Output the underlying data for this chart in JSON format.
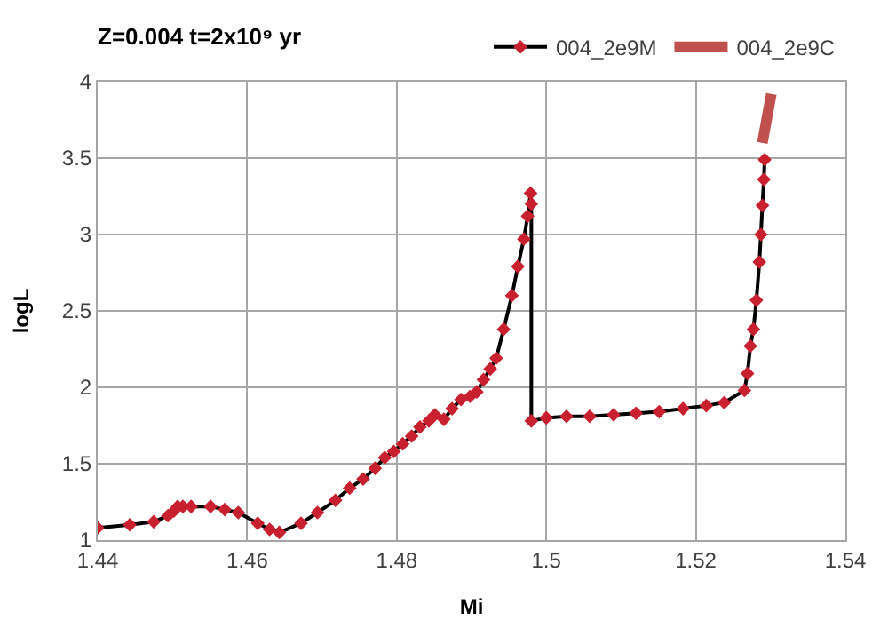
{
  "chart_data": {
    "type": "line",
    "title": "Z=0.004 t=2x10⁹ yr",
    "xlabel": "Mi",
    "ylabel": "logL",
    "xlim": [
      1.44,
      1.54
    ],
    "xticks": [
      1.44,
      1.46,
      1.48,
      1.5,
      1.52,
      1.54
    ],
    "ylim": [
      1,
      4
    ],
    "yticks": [
      1,
      1.5,
      2,
      2.5,
      3,
      3.5,
      4
    ],
    "grid": true,
    "legend": "top right",
    "series": [
      {
        "name": "004_2e9M",
        "color": "#000000",
        "colors": [
          "#c8202e",
          "#c8202e",
          "#c8202e",
          "#c8202e",
          "#c8202e",
          "#c8202e",
          "#c8202e",
          "#c8202e",
          "#c8202e",
          "#c8202e",
          "#c8202e",
          "#c8202e",
          "#c8202e",
          "#c8202e",
          "#c8202e",
          "#c8202e",
          "#c8202e",
          "#c8202e",
          "#c8202e",
          "#c8202e",
          "#c8202e",
          "#c8202e",
          "#c8202e",
          "#c8202e",
          "#c8202e",
          "#c8202e",
          "#c8202e",
          "#c8202e",
          "#c8202e",
          "#c8202e",
          "#c8202e",
          "#c8202e",
          "#c8202e",
          "#c8202e",
          "#c8202e",
          "#c8202e",
          "#c8202e",
          "#c8202e",
          "#c8202e",
          "#c8202e",
          "#c8202e",
          "#c8202e",
          "#c8202e",
          "#c8202e",
          "#c8202e",
          "#c8202e",
          "#c8202e",
          "#c8202e",
          "#c8202e",
          "#c8202e",
          "#c8202e",
          "#c8202e",
          "#c8202e",
          "#c8202e",
          "#c8202e",
          "#c8202e",
          "#c8202e",
          "#c8202e",
          "#c8202e",
          "#c8202e",
          "#c8202e",
          "#c8202e"
        ],
        "marker": "diamond",
        "x": [
          1.44,
          1.4443,
          1.4475,
          1.4494,
          1.4502,
          1.4507,
          1.4514,
          1.4525,
          1.4551,
          1.457,
          1.4588,
          1.4614,
          1.463,
          1.4643,
          1.4672,
          1.4694,
          1.4718,
          1.4737,
          1.4755,
          1.4771,
          1.4784,
          1.4796,
          1.4808,
          1.482,
          1.4831,
          1.4843,
          1.4851,
          1.4863,
          1.4874,
          1.4886,
          1.4898,
          1.4907,
          1.4916,
          1.4925,
          1.4933,
          1.4943,
          1.4954,
          1.4962,
          1.497,
          1.4975,
          1.4979,
          1.498,
          1.498,
          1.5,
          1.5027,
          1.5058,
          1.509,
          1.512,
          1.5151,
          1.5183,
          1.5214,
          1.5238,
          1.5265,
          1.5269,
          1.5273,
          1.5277,
          1.5281,
          1.5285,
          1.5287,
          1.5289,
          1.5291,
          1.5292
        ],
        "values": [
          1.08,
          1.1,
          1.12,
          1.16,
          1.19,
          1.22,
          1.22,
          1.22,
          1.22,
          1.2,
          1.18,
          1.11,
          1.07,
          1.05,
          1.11,
          1.18,
          1.26,
          1.34,
          1.4,
          1.47,
          1.54,
          1.58,
          1.63,
          1.68,
          1.74,
          1.78,
          1.82,
          1.79,
          1.86,
          1.92,
          1.94,
          1.97,
          2.05,
          2.12,
          2.19,
          2.38,
          2.6,
          2.79,
          2.97,
          3.12,
          3.27,
          3.2,
          1.78,
          1.8,
          1.81,
          1.81,
          1.82,
          1.83,
          1.84,
          1.86,
          1.88,
          1.9,
          1.98,
          2.09,
          2.27,
          2.38,
          2.57,
          2.82,
          3.0,
          3.19,
          3.36,
          3.49
        ]
      },
      {
        "name": "004_2e9C",
        "color": "#c0504d",
        "marker": "none",
        "x": [
          1.5289,
          1.5292,
          1.5295,
          1.5298,
          1.5301
        ],
        "values": [
          3.6,
          3.68,
          3.76,
          3.84,
          3.92
        ]
      }
    ]
  }
}
